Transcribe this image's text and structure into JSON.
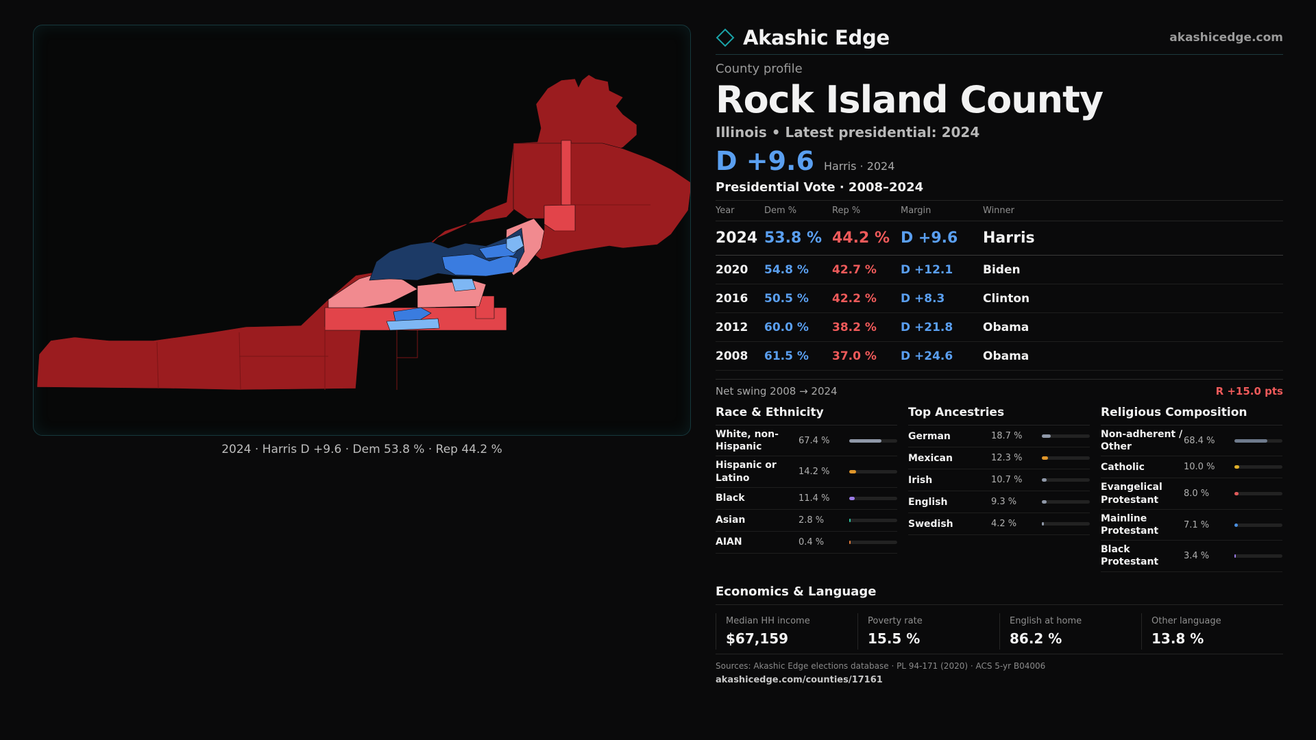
{
  "brand": {
    "name": "Akashic Edge",
    "url": "akashicedge.com",
    "accent": "#1aa3a8"
  },
  "profile": {
    "kicker": "County profile",
    "county": "Rock Island County",
    "subline": "Illinois • Latest presidential: 2024",
    "margin": "D +9.6",
    "margin_sub": "Harris · 2024"
  },
  "map": {
    "caption": "2024 · Harris D +9.6 · Dem 53.8 % · Rep 44.2 %",
    "colors": {
      "safe_r": "#9b1c1f",
      "likely_r": "#e2444a",
      "lean_r": "#f18a8f",
      "lean_d": "#7eb7f4",
      "likely_d": "#3a7ce0",
      "safe_d": "#1c3a66"
    }
  },
  "vote": {
    "title": "Presidential Vote · 2008–2024",
    "headers": {
      "year": "Year",
      "dem": "Dem %",
      "rep": "Rep %",
      "margin": "Margin",
      "winner": "Winner"
    },
    "rows": [
      {
        "year": "2024",
        "dem": "53.8 %",
        "rep": "44.2 %",
        "margin": "D +9.6",
        "winner": "Harris"
      },
      {
        "year": "2020",
        "dem": "54.8 %",
        "rep": "42.7 %",
        "margin": "D +12.1",
        "winner": "Biden"
      },
      {
        "year": "2016",
        "dem": "50.5 %",
        "rep": "42.2 %",
        "margin": "D +8.3",
        "winner": "Clinton"
      },
      {
        "year": "2012",
        "dem": "60.0 %",
        "rep": "38.2 %",
        "margin": "D +21.8",
        "winner": "Obama"
      },
      {
        "year": "2008",
        "dem": "61.5 %",
        "rep": "37.0 %",
        "margin": "D +24.6",
        "winner": "Obama"
      }
    ],
    "swing_label": "Net swing 2008 → 2024",
    "swing_value": "R +15.0 pts"
  },
  "race": {
    "title": "Race & Ethnicity",
    "items": [
      {
        "label": "White, non-Hispanic",
        "value": "67.4 %",
        "pct": 67.4,
        "color": "#8f98a8"
      },
      {
        "label": "Hispanic or Latino",
        "value": "14.2 %",
        "pct": 14.2,
        "color": "#e0962a"
      },
      {
        "label": "Black",
        "value": "11.4 %",
        "pct": 11.4,
        "color": "#9b7be6"
      },
      {
        "label": "Asian",
        "value": "2.8 %",
        "pct": 2.8,
        "color": "#2ec4a0"
      },
      {
        "label": "AIAN",
        "value": "0.4 %",
        "pct": 0.4,
        "color": "#e07a3a"
      }
    ]
  },
  "ancestry": {
    "title": "Top Ancestries",
    "items": [
      {
        "label": "German",
        "value": "18.7 %",
        "pct": 18.7,
        "color": "#8f98a8"
      },
      {
        "label": "Mexican",
        "value": "12.3 %",
        "pct": 12.3,
        "color": "#e0962a"
      },
      {
        "label": "Irish",
        "value": "10.7 %",
        "pct": 10.7,
        "color": "#8f98a8"
      },
      {
        "label": "English",
        "value": "9.3 %",
        "pct": 9.3,
        "color": "#8f98a8"
      },
      {
        "label": "Swedish",
        "value": "4.2 %",
        "pct": 4.2,
        "color": "#8f98a8"
      }
    ]
  },
  "religion": {
    "title": "Religious Composition",
    "items": [
      {
        "label": "Non-adherent / Other",
        "value": "68.4 %",
        "pct": 68.4,
        "color": "#6e7a8c"
      },
      {
        "label": "Catholic",
        "value": "10.0 %",
        "pct": 10.0,
        "color": "#e0b02a"
      },
      {
        "label": "Evangelical Protestant",
        "value": "8.0 %",
        "pct": 8.0,
        "color": "#e05a5a"
      },
      {
        "label": "Mainline Protestant",
        "value": "7.1 %",
        "pct": 7.1,
        "color": "#4a8fe0"
      },
      {
        "label": "Black Protestant",
        "value": "3.4 %",
        "pct": 3.4,
        "color": "#9b7be6"
      }
    ]
  },
  "economics": {
    "title": "Economics & Language",
    "items": [
      {
        "label": "Median HH income",
        "value": "$67,159"
      },
      {
        "label": "Poverty rate",
        "value": "15.5 %"
      },
      {
        "label": "English at home",
        "value": "86.2 %"
      },
      {
        "label": "Other language",
        "value": "13.8 %"
      }
    ]
  },
  "sources": {
    "text": "Sources: Akashic Edge elections database · PL 94-171 (2020) · ACS 5-yr B04006",
    "url": "akashicedge.com/counties/17161"
  }
}
